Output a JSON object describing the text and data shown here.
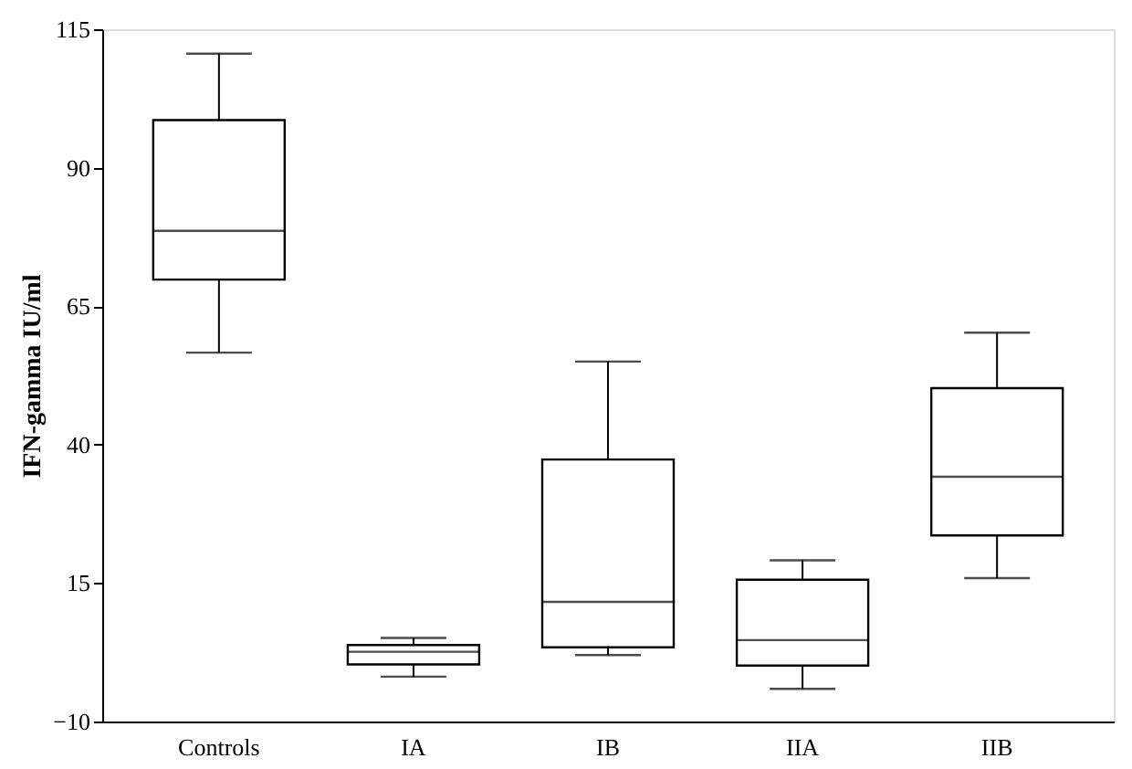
{
  "chart_data": {
    "type": "box",
    "ylabel": "IFN-gamma IU/ml",
    "categories": [
      "Controls",
      "IA",
      "IB",
      "IIA",
      "IIB"
    ],
    "boxes": [
      {
        "low": 56.6,
        "q1": 69.8,
        "median": 78.6,
        "q3": 98.6,
        "high": 110.6
      },
      {
        "low": -1.9,
        "q1": 0.3,
        "median": 2.6,
        "q3": 3.8,
        "high": 5.1
      },
      {
        "low": 2.0,
        "q1": 3.4,
        "median": 11.6,
        "q3": 37.3,
        "high": 55
      },
      {
        "low": -4.1,
        "q1": 0.1,
        "median": 4.7,
        "q3": 15.6,
        "high": 19.1
      },
      {
        "low": 15.9,
        "q1": 23.6,
        "median": 34.2,
        "q3": 50.2,
        "high": 60.2
      }
    ],
    "color": "#000000",
    "ylim": [
      -10,
      115
    ],
    "yticks": [
      -10,
      15,
      40,
      65,
      90,
      115
    ],
    "grid": false
  }
}
